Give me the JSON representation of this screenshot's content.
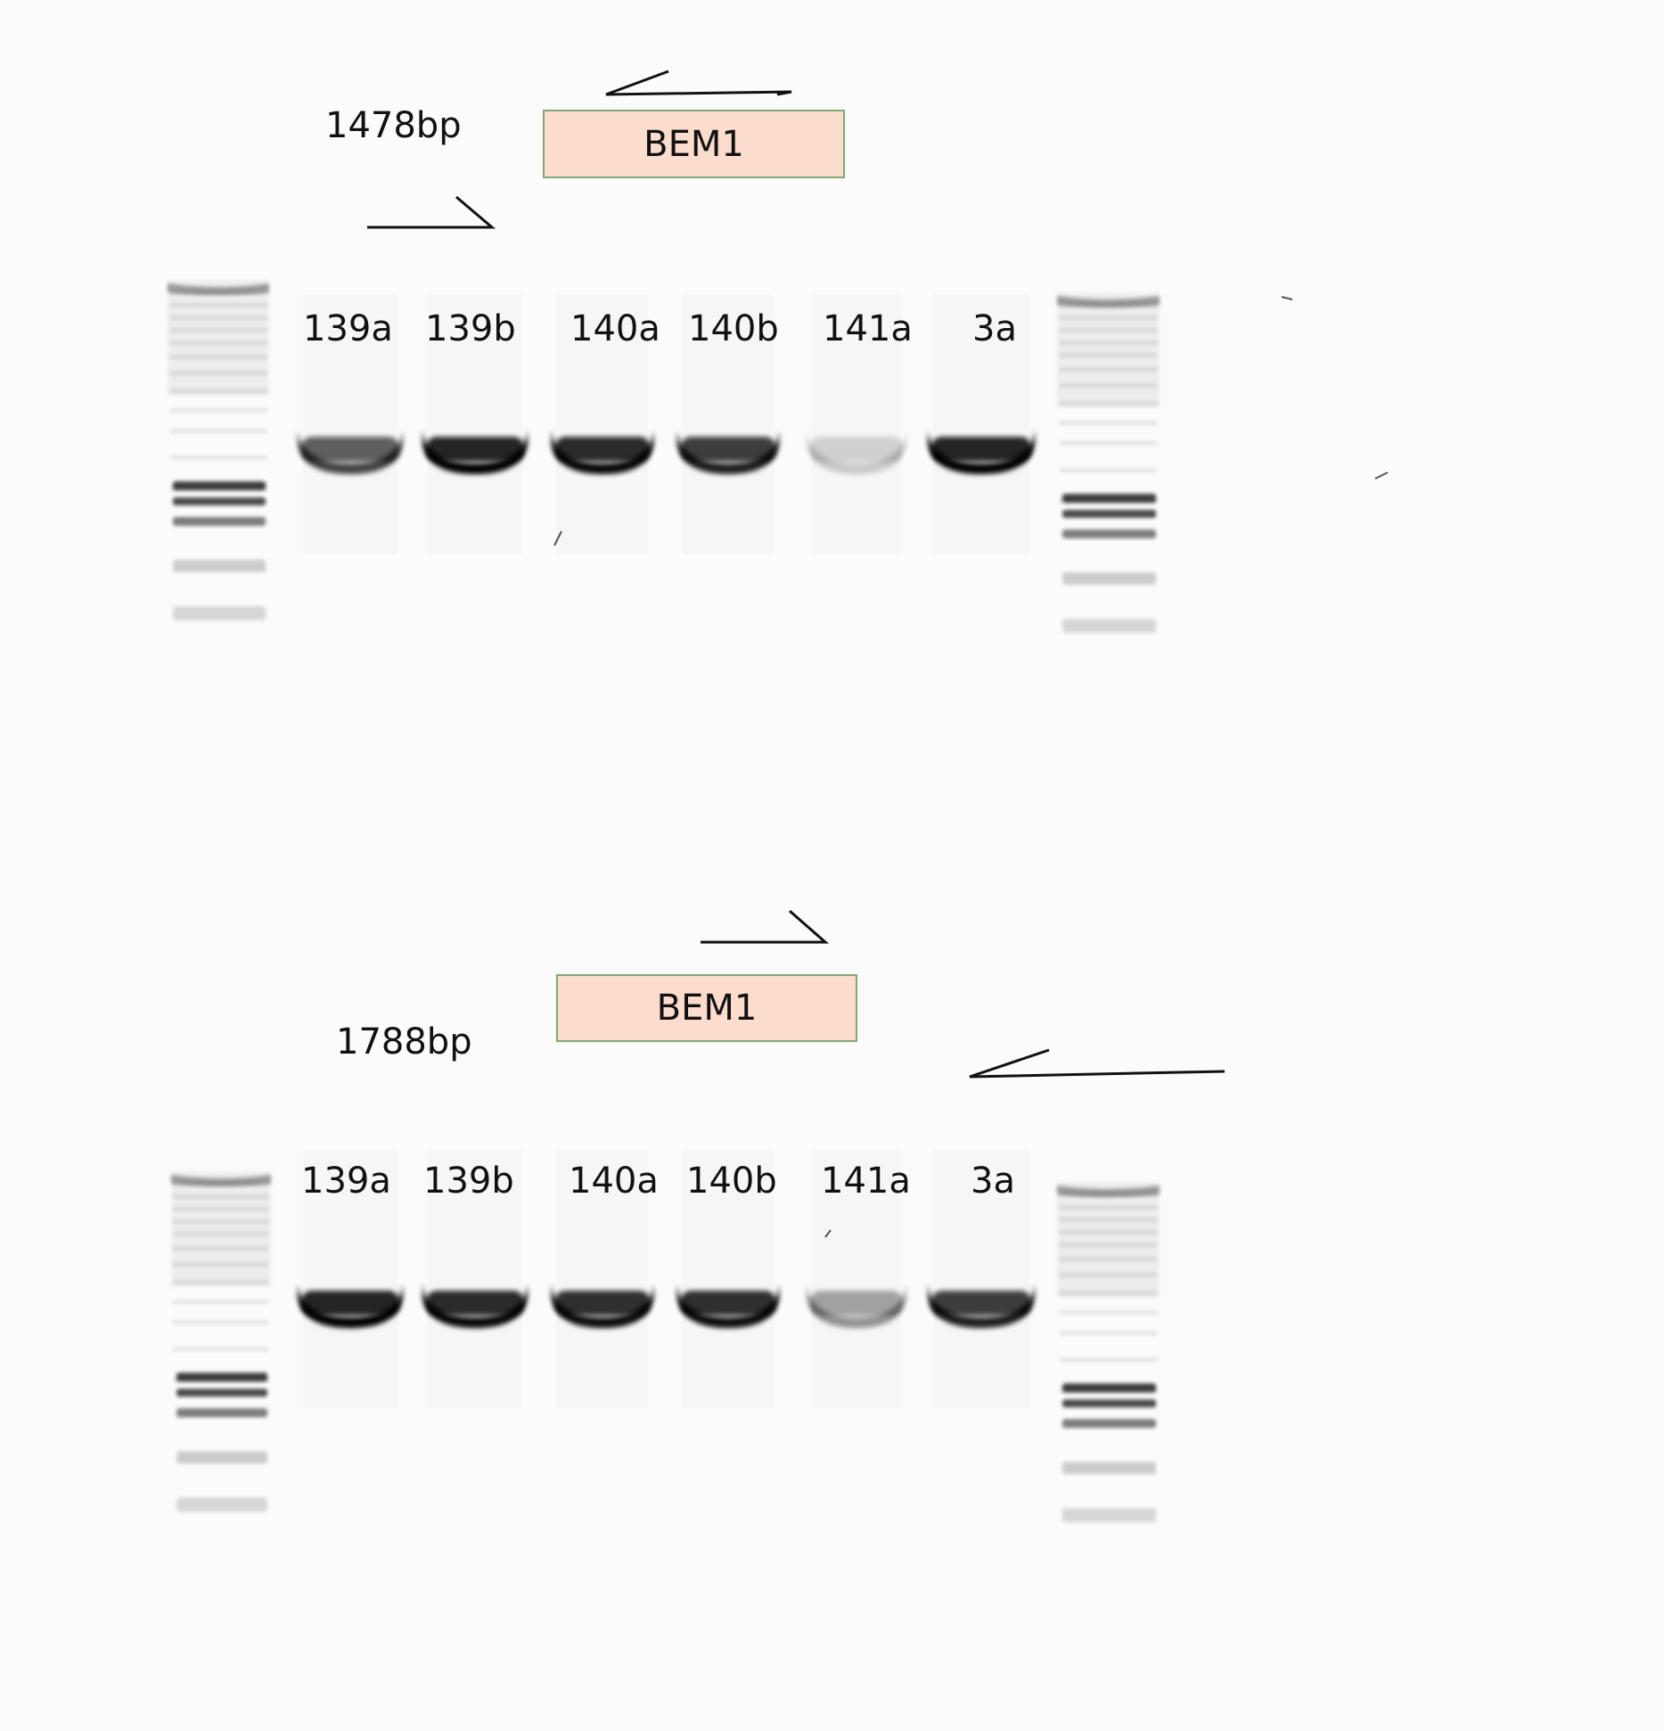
{
  "panels": [
    {
      "product_size": "1478bp",
      "gene": "BEM1",
      "lanes": [
        {
          "label": "139a",
          "intensity": 0.72
        },
        {
          "label": "139b",
          "intensity": 1.0
        },
        {
          "label": "140a",
          "intensity": 0.97
        },
        {
          "label": "140b",
          "intensity": 0.88
        },
        {
          "label": "141a",
          "intensity": 0.18
        },
        {
          "label": "3a",
          "intensity": 1.0
        }
      ]
    },
    {
      "product_size": "1788bp",
      "gene": "BEM1",
      "lanes": [
        {
          "label": "139a",
          "intensity": 1.0
        },
        {
          "label": "139b",
          "intensity": 0.97
        },
        {
          "label": "140a",
          "intensity": 0.95
        },
        {
          "label": "140b",
          "intensity": 0.95
        },
        {
          "label": "141a",
          "intensity": 0.4
        },
        {
          "label": "3a",
          "intensity": 0.88
        }
      ]
    }
  ],
  "colors": {
    "background": "#fbfbfb",
    "gene_box_fill": "#fcdccd",
    "gene_box_border": "#7fa877",
    "band": "#000000",
    "ladder": "#8a8a8a"
  }
}
